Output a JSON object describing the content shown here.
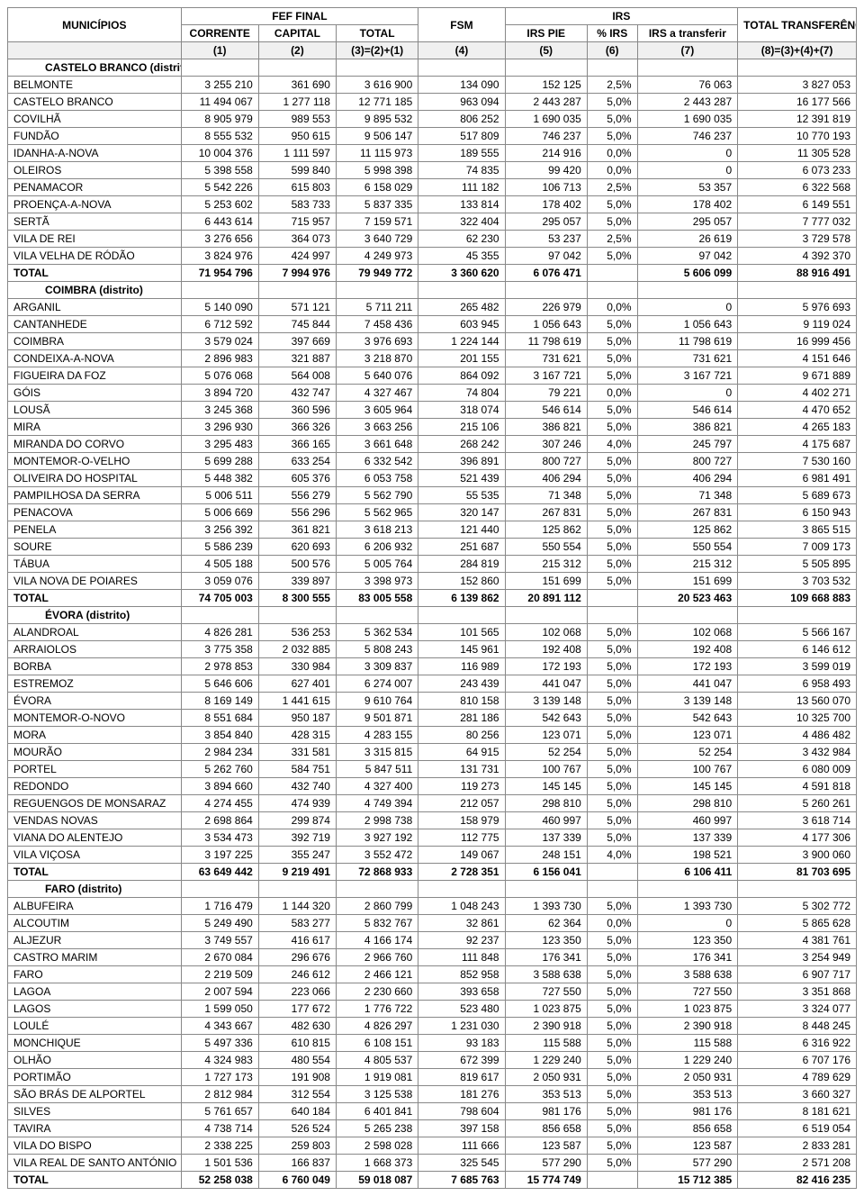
{
  "headers": {
    "municipios": "MUNICÍPIOS",
    "fef_final": "FEF FINAL",
    "fsm": "FSM",
    "irs": "IRS",
    "total_transferencias": "TOTAL TRANSFERÊNCIAS",
    "corrente": "CORRENTE",
    "capital": "CAPITAL",
    "total": "TOTAL",
    "irs_pie": "IRS PIE",
    "pct_irs": "% IRS",
    "irs_transferir": "IRS a transferir",
    "c1": "(1)",
    "c2": "(2)",
    "c3": "(3)=(2)+(1)",
    "c4": "(4)",
    "c5": "(5)",
    "c6": "(6)",
    "c7": "(7)",
    "c8": "(8)=(3)+(4)+(7)"
  },
  "widths": {
    "name": 190,
    "c1": 85,
    "c2": 85,
    "c3": 90,
    "c4": 95,
    "c5": 90,
    "c6": 55,
    "c7": 110,
    "c8": 130
  },
  "districts": [
    {
      "name": "CASTELO BRANCO (distrito)",
      "rows": [
        {
          "n": "BELMONTE",
          "c1": "3 255 210",
          "c2": "361 690",
          "c3": "3 616 900",
          "c4": "134 090",
          "c5": "152 125",
          "c6": "2,5%",
          "c7": "76 063",
          "c8": "3 827 053"
        },
        {
          "n": "CASTELO BRANCO",
          "c1": "11 494 067",
          "c2": "1 277 118",
          "c3": "12 771 185",
          "c4": "963 094",
          "c5": "2 443 287",
          "c6": "5,0%",
          "c7": "2 443 287",
          "c8": "16 177 566"
        },
        {
          "n": "COVILHÃ",
          "c1": "8 905 979",
          "c2": "989 553",
          "c3": "9 895 532",
          "c4": "806 252",
          "c5": "1 690 035",
          "c6": "5,0%",
          "c7": "1 690 035",
          "c8": "12 391 819"
        },
        {
          "n": "FUNDÃO",
          "c1": "8 555 532",
          "c2": "950 615",
          "c3": "9 506 147",
          "c4": "517 809",
          "c5": "746 237",
          "c6": "5,0%",
          "c7": "746 237",
          "c8": "10 770 193"
        },
        {
          "n": "IDANHA-A-NOVA",
          "c1": "10 004 376",
          "c2": "1 111 597",
          "c3": "11 115 973",
          "c4": "189 555",
          "c5": "214 916",
          "c6": "0,0%",
          "c7": "0",
          "c8": "11 305 528"
        },
        {
          "n": "OLEIROS",
          "c1": "5 398 558",
          "c2": "599 840",
          "c3": "5 998 398",
          "c4": "74 835",
          "c5": "99 420",
          "c6": "0,0%",
          "c7": "0",
          "c8": "6 073 233"
        },
        {
          "n": "PENAMACOR",
          "c1": "5 542 226",
          "c2": "615 803",
          "c3": "6 158 029",
          "c4": "111 182",
          "c5": "106 713",
          "c6": "2,5%",
          "c7": "53 357",
          "c8": "6 322 568"
        },
        {
          "n": "PROENÇA-A-NOVA",
          "c1": "5 253 602",
          "c2": "583 733",
          "c3": "5 837 335",
          "c4": "133 814",
          "c5": "178 402",
          "c6": "5,0%",
          "c7": "178 402",
          "c8": "6 149 551"
        },
        {
          "n": "SERTÃ",
          "c1": "6 443 614",
          "c2": "715 957",
          "c3": "7 159 571",
          "c4": "322 404",
          "c5": "295 057",
          "c6": "5,0%",
          "c7": "295 057",
          "c8": "7 777 032"
        },
        {
          "n": "VILA DE REI",
          "c1": "3 276 656",
          "c2": "364 073",
          "c3": "3 640 729",
          "c4": "62 230",
          "c5": "53 237",
          "c6": "2,5%",
          "c7": "26 619",
          "c8": "3 729 578"
        },
        {
          "n": "VILA VELHA DE RÓDÃO",
          "c1": "3 824 976",
          "c2": "424 997",
          "c3": "4 249 973",
          "c4": "45 355",
          "c5": "97 042",
          "c6": "5,0%",
          "c7": "97 042",
          "c8": "4 392 370"
        }
      ],
      "total": {
        "n": "TOTAL",
        "c1": "71 954 796",
        "c2": "7 994 976",
        "c3": "79 949 772",
        "c4": "3 360 620",
        "c5": "6 076 471",
        "c6": "",
        "c7": "5 606 099",
        "c8": "88 916 491"
      }
    },
    {
      "name": "COIMBRA (distrito)",
      "rows": [
        {
          "n": "ARGANIL",
          "c1": "5 140 090",
          "c2": "571 121",
          "c3": "5 711 211",
          "c4": "265 482",
          "c5": "226 979",
          "c6": "0,0%",
          "c7": "0",
          "c8": "5 976 693"
        },
        {
          "n": "CANTANHEDE",
          "c1": "6 712 592",
          "c2": "745 844",
          "c3": "7 458 436",
          "c4": "603 945",
          "c5": "1 056 643",
          "c6": "5,0%",
          "c7": "1 056 643",
          "c8": "9 119 024"
        },
        {
          "n": "COIMBRA",
          "c1": "3 579 024",
          "c2": "397 669",
          "c3": "3 976 693",
          "c4": "1 224 144",
          "c5": "11 798 619",
          "c6": "5,0%",
          "c7": "11 798 619",
          "c8": "16 999 456"
        },
        {
          "n": "CONDEIXA-A-NOVA",
          "c1": "2 896 983",
          "c2": "321 887",
          "c3": "3 218 870",
          "c4": "201 155",
          "c5": "731 621",
          "c6": "5,0%",
          "c7": "731 621",
          "c8": "4 151 646"
        },
        {
          "n": "FIGUEIRA DA FOZ",
          "c1": "5 076 068",
          "c2": "564 008",
          "c3": "5 640 076",
          "c4": "864 092",
          "c5": "3 167 721",
          "c6": "5,0%",
          "c7": "3 167 721",
          "c8": "9 671 889"
        },
        {
          "n": "GÓIS",
          "c1": "3 894 720",
          "c2": "432 747",
          "c3": "4 327 467",
          "c4": "74 804",
          "c5": "79 221",
          "c6": "0,0%",
          "c7": "0",
          "c8": "4 402 271"
        },
        {
          "n": "LOUSÃ",
          "c1": "3 245 368",
          "c2": "360 596",
          "c3": "3 605 964",
          "c4": "318 074",
          "c5": "546 614",
          "c6": "5,0%",
          "c7": "546 614",
          "c8": "4 470 652"
        },
        {
          "n": "MIRA",
          "c1": "3 296 930",
          "c2": "366 326",
          "c3": "3 663 256",
          "c4": "215 106",
          "c5": "386 821",
          "c6": "5,0%",
          "c7": "386 821",
          "c8": "4 265 183"
        },
        {
          "n": "MIRANDA DO CORVO",
          "c1": "3 295 483",
          "c2": "366 165",
          "c3": "3 661 648",
          "c4": "268 242",
          "c5": "307 246",
          "c6": "4,0%",
          "c7": "245 797",
          "c8": "4 175 687"
        },
        {
          "n": "MONTEMOR-O-VELHO",
          "c1": "5 699 288",
          "c2": "633 254",
          "c3": "6 332 542",
          "c4": "396 891",
          "c5": "800 727",
          "c6": "5,0%",
          "c7": "800 727",
          "c8": "7 530 160"
        },
        {
          "n": "OLIVEIRA DO HOSPITAL",
          "c1": "5 448 382",
          "c2": "605 376",
          "c3": "6 053 758",
          "c4": "521 439",
          "c5": "406 294",
          "c6": "5,0%",
          "c7": "406 294",
          "c8": "6 981 491"
        },
        {
          "n": "PAMPILHOSA DA SERRA",
          "c1": "5 006 511",
          "c2": "556 279",
          "c3": "5 562 790",
          "c4": "55 535",
          "c5": "71 348",
          "c6": "5,0%",
          "c7": "71 348",
          "c8": "5 689 673"
        },
        {
          "n": "PENACOVA",
          "c1": "5 006 669",
          "c2": "556 296",
          "c3": "5 562 965",
          "c4": "320 147",
          "c5": "267 831",
          "c6": "5,0%",
          "c7": "267 831",
          "c8": "6 150 943"
        },
        {
          "n": "PENELA",
          "c1": "3 256 392",
          "c2": "361 821",
          "c3": "3 618 213",
          "c4": "121 440",
          "c5": "125 862",
          "c6": "5,0%",
          "c7": "125 862",
          "c8": "3 865 515"
        },
        {
          "n": "SOURE",
          "c1": "5 586 239",
          "c2": "620 693",
          "c3": "6 206 932",
          "c4": "251 687",
          "c5": "550 554",
          "c6": "5,0%",
          "c7": "550 554",
          "c8": "7 009 173"
        },
        {
          "n": "TÁBUA",
          "c1": "4 505 188",
          "c2": "500 576",
          "c3": "5 005 764",
          "c4": "284 819",
          "c5": "215 312",
          "c6": "5,0%",
          "c7": "215 312",
          "c8": "5 505 895"
        },
        {
          "n": "VILA NOVA DE POIARES",
          "c1": "3 059 076",
          "c2": "339 897",
          "c3": "3 398 973",
          "c4": "152 860",
          "c5": "151 699",
          "c6": "5,0%",
          "c7": "151 699",
          "c8": "3 703 532"
        }
      ],
      "total": {
        "n": "TOTAL",
        "c1": "74 705 003",
        "c2": "8 300 555",
        "c3": "83 005 558",
        "c4": "6 139 862",
        "c5": "20 891 112",
        "c6": "",
        "c7": "20 523 463",
        "c8": "109 668 883"
      }
    },
    {
      "name": "ÉVORA (distrito)",
      "rows": [
        {
          "n": "ALANDROAL",
          "c1": "4 826 281",
          "c2": "536 253",
          "c3": "5 362 534",
          "c4": "101 565",
          "c5": "102 068",
          "c6": "5,0%",
          "c7": "102 068",
          "c8": "5 566 167"
        },
        {
          "n": "ARRAIOLOS",
          "c1": "3 775 358",
          "c2": "2 032 885",
          "c3": "5 808 243",
          "c4": "145 961",
          "c5": "192 408",
          "c6": "5,0%",
          "c7": "192 408",
          "c8": "6 146 612"
        },
        {
          "n": "BORBA",
          "c1": "2 978 853",
          "c2": "330 984",
          "c3": "3 309 837",
          "c4": "116 989",
          "c5": "172 193",
          "c6": "5,0%",
          "c7": "172 193",
          "c8": "3 599 019"
        },
        {
          "n": "ESTREMOZ",
          "c1": "5 646 606",
          "c2": "627 401",
          "c3": "6 274 007",
          "c4": "243 439",
          "c5": "441 047",
          "c6": "5,0%",
          "c7": "441 047",
          "c8": "6 958 493"
        },
        {
          "n": "ÉVORA",
          "c1": "8 169 149",
          "c2": "1 441 615",
          "c3": "9 610 764",
          "c4": "810 158",
          "c5": "3 139 148",
          "c6": "5,0%",
          "c7": "3 139 148",
          "c8": "13 560 070"
        },
        {
          "n": "MONTEMOR-O-NOVO",
          "c1": "8 551 684",
          "c2": "950 187",
          "c3": "9 501 871",
          "c4": "281 186",
          "c5": "542 643",
          "c6": "5,0%",
          "c7": "542 643",
          "c8": "10 325 700"
        },
        {
          "n": "MORA",
          "c1": "3 854 840",
          "c2": "428 315",
          "c3": "4 283 155",
          "c4": "80 256",
          "c5": "123 071",
          "c6": "5,0%",
          "c7": "123 071",
          "c8": "4 486 482"
        },
        {
          "n": "MOURÃO",
          "c1": "2 984 234",
          "c2": "331 581",
          "c3": "3 315 815",
          "c4": "64 915",
          "c5": "52 254",
          "c6": "5,0%",
          "c7": "52 254",
          "c8": "3 432 984"
        },
        {
          "n": "PORTEL",
          "c1": "5 262 760",
          "c2": "584 751",
          "c3": "5 847 511",
          "c4": "131 731",
          "c5": "100 767",
          "c6": "5,0%",
          "c7": "100 767",
          "c8": "6 080 009"
        },
        {
          "n": "REDONDO",
          "c1": "3 894 660",
          "c2": "432 740",
          "c3": "4 327 400",
          "c4": "119 273",
          "c5": "145 145",
          "c6": "5,0%",
          "c7": "145 145",
          "c8": "4 591 818"
        },
        {
          "n": "REGUENGOS DE MONSARAZ",
          "c1": "4 274 455",
          "c2": "474 939",
          "c3": "4 749 394",
          "c4": "212 057",
          "c5": "298 810",
          "c6": "5,0%",
          "c7": "298 810",
          "c8": "5 260 261"
        },
        {
          "n": "VENDAS NOVAS",
          "c1": "2 698 864",
          "c2": "299 874",
          "c3": "2 998 738",
          "c4": "158 979",
          "c5": "460 997",
          "c6": "5,0%",
          "c7": "460 997",
          "c8": "3 618 714"
        },
        {
          "n": "VIANA DO ALENTEJO",
          "c1": "3 534 473",
          "c2": "392 719",
          "c3": "3 927 192",
          "c4": "112 775",
          "c5": "137 339",
          "c6": "5,0%",
          "c7": "137 339",
          "c8": "4 177 306"
        },
        {
          "n": "VILA VIÇOSA",
          "c1": "3 197 225",
          "c2": "355 247",
          "c3": "3 552 472",
          "c4": "149 067",
          "c5": "248 151",
          "c6": "4,0%",
          "c7": "198 521",
          "c8": "3 900 060"
        }
      ],
      "total": {
        "n": "TOTAL",
        "c1": "63 649 442",
        "c2": "9 219 491",
        "c3": "72 868 933",
        "c4": "2 728 351",
        "c5": "6 156 041",
        "c6": "",
        "c7": "6 106 411",
        "c8": "81 703 695"
      }
    },
    {
      "name": "FARO (distrito)",
      "rows": [
        {
          "n": "ALBUFEIRA",
          "c1": "1 716 479",
          "c2": "1 144 320",
          "c3": "2 860 799",
          "c4": "1 048 243",
          "c5": "1 393 730",
          "c6": "5,0%",
          "c7": "1 393 730",
          "c8": "5 302 772"
        },
        {
          "n": "ALCOUTIM",
          "c1": "5 249 490",
          "c2": "583 277",
          "c3": "5 832 767",
          "c4": "32 861",
          "c5": "62 364",
          "c6": "0,0%",
          "c7": "0",
          "c8": "5 865 628"
        },
        {
          "n": "ALJEZUR",
          "c1": "3 749 557",
          "c2": "416 617",
          "c3": "4 166 174",
          "c4": "92 237",
          "c5": "123 350",
          "c6": "5,0%",
          "c7": "123 350",
          "c8": "4 381 761"
        },
        {
          "n": "CASTRO MARIM",
          "c1": "2 670 084",
          "c2": "296 676",
          "c3": "2 966 760",
          "c4": "111 848",
          "c5": "176 341",
          "c6": "5,0%",
          "c7": "176 341",
          "c8": "3 254 949"
        },
        {
          "n": "FARO",
          "c1": "2 219 509",
          "c2": "246 612",
          "c3": "2 466 121",
          "c4": "852 958",
          "c5": "3 588 638",
          "c6": "5,0%",
          "c7": "3 588 638",
          "c8": "6 907 717"
        },
        {
          "n": "LAGOA",
          "c1": "2 007 594",
          "c2": "223 066",
          "c3": "2 230 660",
          "c4": "393 658",
          "c5": "727 550",
          "c6": "5,0%",
          "c7": "727 550",
          "c8": "3 351 868"
        },
        {
          "n": "LAGOS",
          "c1": "1 599 050",
          "c2": "177 672",
          "c3": "1 776 722",
          "c4": "523 480",
          "c5": "1 023 875",
          "c6": "5,0%",
          "c7": "1 023 875",
          "c8": "3 324 077"
        },
        {
          "n": "LOULÉ",
          "c1": "4 343 667",
          "c2": "482 630",
          "c3": "4 826 297",
          "c4": "1 231 030",
          "c5": "2 390 918",
          "c6": "5,0%",
          "c7": "2 390 918",
          "c8": "8 448 245"
        },
        {
          "n": "MONCHIQUE",
          "c1": "5 497 336",
          "c2": "610 815",
          "c3": "6 108 151",
          "c4": "93 183",
          "c5": "115 588",
          "c6": "5,0%",
          "c7": "115 588",
          "c8": "6 316 922"
        },
        {
          "n": "OLHÃO",
          "c1": "4 324 983",
          "c2": "480 554",
          "c3": "4 805 537",
          "c4": "672 399",
          "c5": "1 229 240",
          "c6": "5,0%",
          "c7": "1 229 240",
          "c8": "6 707 176"
        },
        {
          "n": "PORTIMÃO",
          "c1": "1 727 173",
          "c2": "191 908",
          "c3": "1 919 081",
          "c4": "819 617",
          "c5": "2 050 931",
          "c6": "5,0%",
          "c7": "2 050 931",
          "c8": "4 789 629"
        },
        {
          "n": "SÃO BRÁS DE ALPORTEL",
          "c1": "2 812 984",
          "c2": "312 554",
          "c3": "3 125 538",
          "c4": "181 276",
          "c5": "353 513",
          "c6": "5,0%",
          "c7": "353 513",
          "c8": "3 660 327"
        },
        {
          "n": "SILVES",
          "c1": "5 761 657",
          "c2": "640 184",
          "c3": "6 401 841",
          "c4": "798 604",
          "c5": "981 176",
          "c6": "5,0%",
          "c7": "981 176",
          "c8": "8 181 621"
        },
        {
          "n": "TAVIRA",
          "c1": "4 738 714",
          "c2": "526 524",
          "c3": "5 265 238",
          "c4": "397 158",
          "c5": "856 658",
          "c6": "5,0%",
          "c7": "856 658",
          "c8": "6 519 054"
        },
        {
          "n": "VILA DO BISPO",
          "c1": "2 338 225",
          "c2": "259 803",
          "c3": "2 598 028",
          "c4": "111 666",
          "c5": "123 587",
          "c6": "5,0%",
          "c7": "123 587",
          "c8": "2 833 281"
        },
        {
          "n": "VILA REAL DE SANTO ANTÓNIO",
          "c1": "1 501 536",
          "c2": "166 837",
          "c3": "1 668 373",
          "c4": "325 545",
          "c5": "577 290",
          "c6": "5,0%",
          "c7": "577 290",
          "c8": "2 571 208"
        }
      ],
      "total": {
        "n": "TOTAL",
        "c1": "52 258 038",
        "c2": "6 760 049",
        "c3": "59 018 087",
        "c4": "7 685 763",
        "c5": "15 774 749",
        "c6": "",
        "c7": "15 712 385",
        "c8": "82 416 235"
      }
    }
  ]
}
